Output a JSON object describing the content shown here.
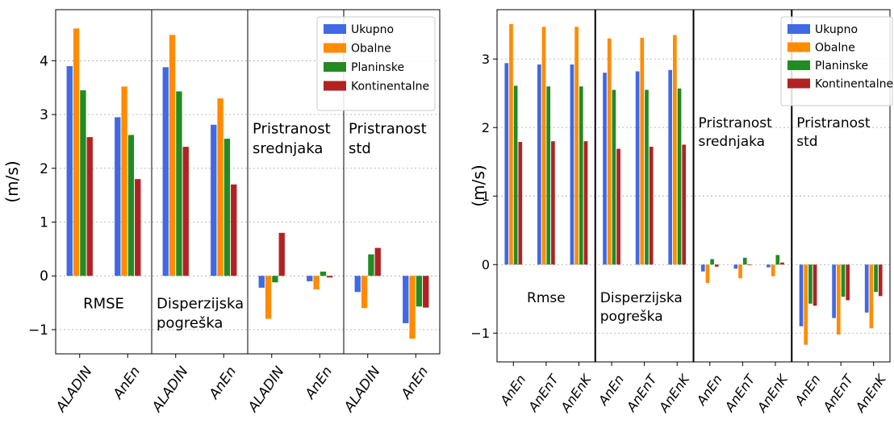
{
  "colors": {
    "Ukupno": "#4169e1",
    "Obalne": "#ff8c00",
    "Planinske": "#228b22",
    "Kontinentalne": "#b22222",
    "grid": "#b0b0b0",
    "axis": "#000000"
  },
  "chart_data": [
    {
      "type": "bar",
      "title": "",
      "ylabel": "(m/s)",
      "xlabel": "",
      "ylim": [
        -1.45,
        4.95
      ],
      "yticks": [
        -1,
        0,
        1,
        2,
        3,
        4
      ],
      "ytick_labels": [
        "−1",
        "0",
        "1",
        "2",
        "3",
        "4"
      ],
      "grid": "horizontal dotted",
      "legend": "top-right",
      "categories": [
        "ALADIN",
        "AnEn",
        "ALADIN",
        "AnEn",
        "ALADIN",
        "AnEn",
        "ALADIN",
        "AnEn"
      ],
      "groups": [
        {
          "label_lines": [
            "RMSE"
          ],
          "label_y": -0.6
        },
        {
          "label_lines": [
            "Disperzijska",
            "pogreška"
          ],
          "label_y": -0.6
        },
        {
          "label_lines": [
            "Pristranost",
            "srednjaka"
          ],
          "label_y": 2.65
        },
        {
          "label_lines": [
            "Pristranost",
            "std"
          ],
          "label_y": 2.65
        }
      ],
      "series": [
        {
          "name": "Ukupno",
          "values": [
            3.9,
            2.95,
            3.88,
            2.81,
            -0.22,
            -0.1,
            -0.3,
            -0.88
          ]
        },
        {
          "name": "Obalne",
          "values": [
            4.6,
            3.52,
            4.48,
            3.3,
            -0.8,
            -0.25,
            -0.6,
            -1.17
          ]
        },
        {
          "name": "Planinske",
          "values": [
            3.45,
            2.62,
            3.43,
            2.55,
            -0.12,
            0.08,
            0.4,
            -0.57
          ]
        },
        {
          "name": "Kontinentalne",
          "values": [
            2.58,
            1.8,
            2.4,
            1.7,
            0.8,
            -0.03,
            0.52,
            -0.59
          ]
        }
      ]
    },
    {
      "type": "bar",
      "title": "",
      "ylabel": "(m/s)",
      "xlabel": "",
      "ylim": [
        -1.42,
        3.72
      ],
      "yticks": [
        -1,
        0,
        1,
        2,
        3
      ],
      "ytick_labels": [
        "−1",
        "0",
        "1",
        "2",
        "3"
      ],
      "grid": "horizontal dotted",
      "legend": "top-right",
      "categories": [
        "AnEn",
        "AnEnT",
        "AnEnK",
        "AnEn",
        "AnEnT",
        "AnEnK",
        "AnEn",
        "AnEnT",
        "AnEnK",
        "AnEn",
        "AnEnT",
        "AnEnK"
      ],
      "groups": [
        {
          "label_lines": [
            "Rmse"
          ],
          "label_y": -0.55
        },
        {
          "label_lines": [
            "Disperzijska",
            "pogreška"
          ],
          "label_y": -0.55
        },
        {
          "label_lines": [
            "Pristranost",
            "srednjaka"
          ],
          "label_y": 2.0
        },
        {
          "label_lines": [
            "Pristranost",
            "std"
          ],
          "label_y": 2.0
        }
      ],
      "series": [
        {
          "name": "Ukupno",
          "values": [
            2.94,
            2.92,
            2.92,
            2.8,
            2.82,
            2.84,
            -0.1,
            -0.06,
            -0.04,
            -0.9,
            -0.78,
            -0.7
          ]
        },
        {
          "name": "Obalne",
          "values": [
            3.51,
            3.47,
            3.47,
            3.3,
            3.31,
            3.35,
            -0.27,
            -0.2,
            -0.17,
            -1.17,
            -1.02,
            -0.93
          ]
        },
        {
          "name": "Planinske",
          "values": [
            2.61,
            2.6,
            2.6,
            2.55,
            2.55,
            2.57,
            0.08,
            0.1,
            0.14,
            -0.57,
            -0.47,
            -0.4
          ]
        },
        {
          "name": "Kontinentalne",
          "values": [
            1.79,
            1.8,
            1.8,
            1.69,
            1.72,
            1.75,
            -0.03,
            -0.01,
            0.03,
            -0.6,
            -0.52,
            -0.46
          ]
        }
      ]
    }
  ]
}
